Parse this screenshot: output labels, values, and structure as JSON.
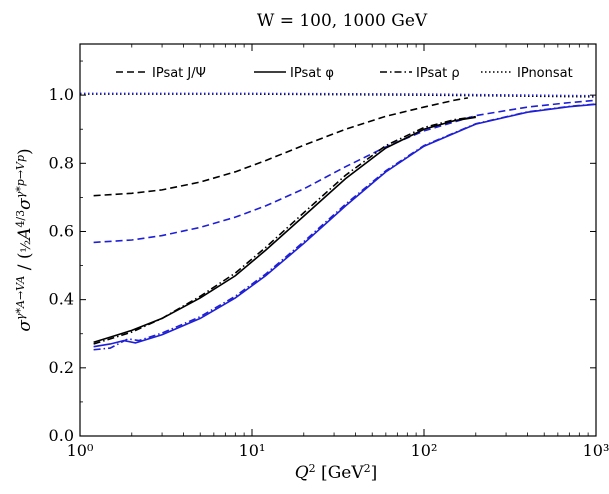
{
  "chart_data": {
    "type": "line",
    "title": "W = 100, 1000 GeV",
    "xlabel": "Q² [GeV²]",
    "ylabel": "σ^{γ*A→VA} / (½ A^{4/3} σ^{γ*p→Vp})",
    "xscale": "log",
    "xlim": [
      1,
      1000
    ],
    "ylim": [
      0.0,
      1.15
    ],
    "x_ticks": [
      {
        "value": 1,
        "label": "10⁰"
      },
      {
        "value": 10,
        "label": "10¹"
      },
      {
        "value": 100,
        "label": "10²"
      },
      {
        "value": 1000,
        "label": "10³"
      }
    ],
    "y_ticks": [
      {
        "value": 0.0,
        "label": "0.0"
      },
      {
        "value": 0.2,
        "label": "0.2"
      },
      {
        "value": 0.4,
        "label": "0.4"
      },
      {
        "value": 0.6,
        "label": "0.6"
      },
      {
        "value": 0.8,
        "label": "0.8"
      },
      {
        "value": 1.0,
        "label": "1.0"
      }
    ],
    "legend": {
      "placement": "top",
      "entries": [
        {
          "label": "IPsat J/Ψ",
          "style": "dashed"
        },
        {
          "label": "IPsat φ",
          "style": "solid"
        },
        {
          "label": "IPsat ρ",
          "style": "dashdot"
        },
        {
          "label": "IPnonsat",
          "style": "dotted"
        }
      ]
    },
    "colors": {
      "W100": "#000000",
      "W1000": "#1f1fd6"
    },
    "series": [
      {
        "group": "W100",
        "legend_ref": "IPsat J/Ψ",
        "style": "dashed",
        "x": [
          1.2,
          2,
          3,
          5,
          8,
          12,
          20,
          35,
          60,
          100,
          150,
          180
        ],
        "y": [
          0.705,
          0.712,
          0.722,
          0.745,
          0.775,
          0.808,
          0.853,
          0.9,
          0.938,
          0.965,
          0.985,
          0.992
        ]
      },
      {
        "group": "W1000",
        "legend_ref": "IPsat J/Ψ",
        "style": "dashed",
        "x": [
          1.2,
          2,
          3,
          5,
          8,
          12,
          20,
          35,
          60,
          100,
          200,
          400,
          700,
          1000
        ],
        "y": [
          0.568,
          0.575,
          0.588,
          0.612,
          0.642,
          0.675,
          0.725,
          0.79,
          0.848,
          0.895,
          0.94,
          0.965,
          0.978,
          0.985
        ]
      },
      {
        "group": "W100",
        "legend_ref": "IPsat φ",
        "style": "solid",
        "x": [
          1.2,
          1.5,
          2,
          3,
          5,
          8,
          12,
          20,
          35,
          60,
          100,
          150,
          200
        ],
        "y": [
          0.275,
          0.29,
          0.31,
          0.345,
          0.405,
          0.47,
          0.545,
          0.645,
          0.755,
          0.845,
          0.9,
          0.925,
          0.935
        ]
      },
      {
        "group": "W100",
        "legend_ref": "IPsat ρ",
        "style": "dashdot",
        "x": [
          1.2,
          1.5,
          2,
          3,
          5,
          8,
          12,
          20,
          35,
          60,
          100,
          150,
          200
        ],
        "y": [
          0.27,
          0.285,
          0.305,
          0.345,
          0.41,
          0.478,
          0.553,
          0.655,
          0.765,
          0.852,
          0.905,
          0.928,
          0.937
        ]
      },
      {
        "group": "W1000",
        "legend_ref": "IPsat φ",
        "style": "solid",
        "x": [
          1.2,
          1.5,
          1.8,
          2.1,
          3,
          5,
          8,
          12,
          20,
          35,
          60,
          100,
          200,
          400,
          700,
          1000
        ],
        "y": [
          0.262,
          0.27,
          0.28,
          0.273,
          0.297,
          0.345,
          0.405,
          0.47,
          0.565,
          0.675,
          0.775,
          0.85,
          0.915,
          0.95,
          0.966,
          0.973
        ]
      },
      {
        "group": "W1000",
        "legend_ref": "IPsat ρ",
        "style": "dashdot",
        "x": [
          1.2,
          1.5,
          1.9,
          2.2,
          3,
          5,
          8,
          12,
          20,
          35,
          60,
          100,
          200,
          400,
          700,
          1000
        ],
        "y": [
          0.253,
          0.258,
          0.285,
          0.28,
          0.302,
          0.35,
          0.41,
          0.475,
          0.57,
          0.68,
          0.778,
          0.852,
          0.916,
          0.951,
          0.967,
          0.974
        ]
      },
      {
        "group": "W100",
        "legend_ref": "IPnonsat",
        "style": "dotted",
        "x": [
          1,
          10,
          100,
          1000
        ],
        "y": [
          1.003,
          1.003,
          1.0,
          0.995
        ]
      },
      {
        "group": "W1000",
        "legend_ref": "IPnonsat",
        "style": "dotted",
        "x": [
          1,
          10,
          100,
          1000
        ],
        "y": [
          1.005,
          1.005,
          1.003,
          0.998
        ]
      }
    ]
  }
}
